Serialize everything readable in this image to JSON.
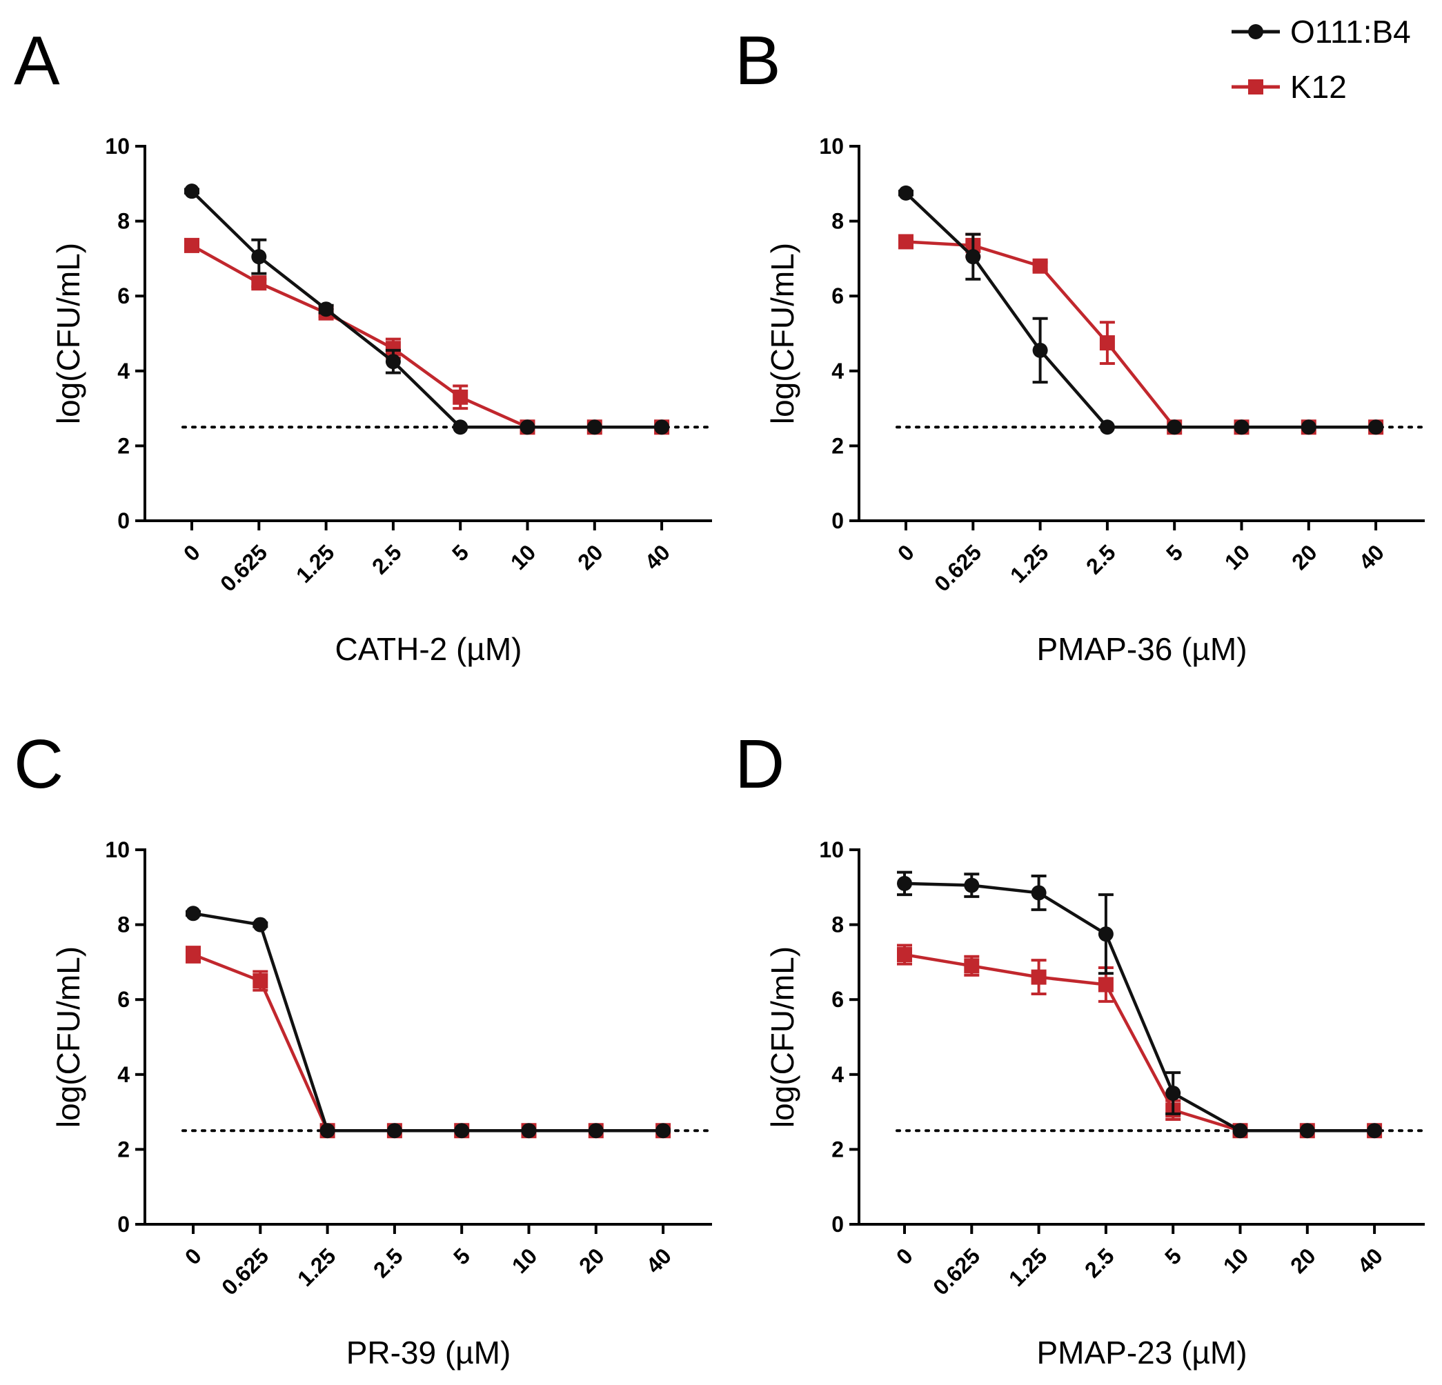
{
  "legend": {
    "entries": [
      {
        "label": "O111:B4",
        "color": "#111111",
        "marker": "circle"
      },
      {
        "label": "K12",
        "color": "#c1272d",
        "marker": "square"
      }
    ],
    "placement": "top-right"
  },
  "limit_of_detection": 2.5,
  "chart_data": [
    {
      "panel": "A",
      "type": "line",
      "categories": [
        "0",
        "0.625",
        "1.25",
        "2.5",
        "5",
        "10",
        "20",
        "40"
      ],
      "xlabel": "CATH-2 (µM)",
      "ylabel": "log(CFU/mL)",
      "ylim": [
        0,
        10
      ],
      "yticks": [
        "0",
        "2",
        "4",
        "6",
        "8",
        "10"
      ],
      "series": [
        {
          "name": "O111:B4",
          "values": [
            8.8,
            7.05,
            5.65,
            4.25,
            2.5,
            2.5,
            2.5,
            2.5
          ],
          "errors": [
            0.05,
            0.45,
            0.1,
            0.3,
            0,
            0,
            0,
            0
          ]
        },
        {
          "name": "K12",
          "values": [
            7.35,
            6.35,
            5.55,
            4.6,
            3.3,
            2.5,
            2.5,
            2.5
          ],
          "errors": [
            0.1,
            0.1,
            0.1,
            0.25,
            0.3,
            0,
            0,
            0
          ]
        }
      ]
    },
    {
      "panel": "B",
      "type": "line",
      "categories": [
        "0",
        "0.625",
        "1.25",
        "2.5",
        "5",
        "10",
        "20",
        "40"
      ],
      "xlabel": "PMAP-36 (µM)",
      "ylabel": "log(CFU/mL)",
      "ylim": [
        0,
        10
      ],
      "yticks": [
        "0",
        "2",
        "4",
        "6",
        "8",
        "10"
      ],
      "series": [
        {
          "name": "O111:B4",
          "values": [
            8.75,
            7.05,
            4.55,
            2.5,
            2.5,
            2.5,
            2.5,
            2.5
          ],
          "errors": [
            0.05,
            0.6,
            0.85,
            0,
            0,
            0,
            0,
            0
          ]
        },
        {
          "name": "K12",
          "values": [
            7.45,
            7.35,
            6.8,
            4.75,
            2.5,
            2.5,
            2.5,
            2.5
          ],
          "errors": [
            0.05,
            0.3,
            0.1,
            0.55,
            0,
            0,
            0,
            0
          ]
        }
      ]
    },
    {
      "panel": "C",
      "type": "line",
      "categories": [
        "0",
        "0.625",
        "1.25",
        "2.5",
        "5",
        "10",
        "20",
        "40"
      ],
      "xlabel": "PR-39 (µM)",
      "ylabel": "log(CFU/mL)",
      "ylim": [
        0,
        10
      ],
      "yticks": [
        "0",
        "2",
        "4",
        "6",
        "8",
        "10"
      ],
      "series": [
        {
          "name": "O111:B4",
          "values": [
            8.3,
            8.0,
            2.5,
            2.5,
            2.5,
            2.5,
            2.5,
            2.5
          ],
          "errors": [
            0.05,
            0.05,
            0,
            0,
            0,
            0,
            0,
            0
          ]
        },
        {
          "name": "K12",
          "values": [
            7.2,
            6.5,
            2.5,
            2.5,
            2.5,
            2.5,
            2.5,
            2.5
          ],
          "errors": [
            0.2,
            0.25,
            0,
            0,
            0,
            0,
            0,
            0
          ]
        }
      ]
    },
    {
      "panel": "D",
      "type": "line",
      "categories": [
        "0",
        "0.625",
        "1.25",
        "2.5",
        "5",
        "10",
        "20",
        "40"
      ],
      "xlabel": "PMAP-23 (µM)",
      "ylabel": "log(CFU/mL)",
      "ylim": [
        0,
        10
      ],
      "yticks": [
        "0",
        "2",
        "4",
        "6",
        "8",
        "10"
      ],
      "series": [
        {
          "name": "O111:B4",
          "values": [
            9.1,
            9.05,
            8.85,
            7.75,
            3.5,
            2.5,
            2.5,
            2.5
          ],
          "errors": [
            0.3,
            0.3,
            0.45,
            1.05,
            0.55,
            0,
            0,
            0
          ]
        },
        {
          "name": "K12",
          "values": [
            7.2,
            6.9,
            6.6,
            6.4,
            3.05,
            2.5,
            2.5,
            2.5
          ],
          "errors": [
            0.25,
            0.25,
            0.45,
            0.45,
            0.25,
            0,
            0,
            0
          ]
        }
      ]
    }
  ]
}
